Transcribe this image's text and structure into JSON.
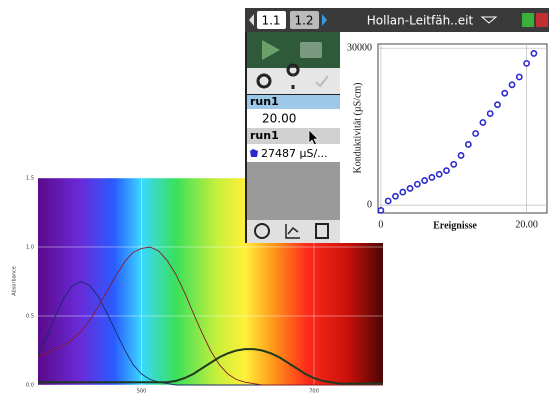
{
  "chart_data": [
    {
      "type": "line",
      "y_label": "Absorbance",
      "x": [
        380,
        390,
        400,
        410,
        420,
        430,
        440,
        450,
        460,
        470,
        480,
        490,
        500,
        510,
        520,
        530,
        540,
        550,
        560,
        570,
        580,
        590,
        600,
        610,
        620,
        630,
        640,
        650,
        660,
        670,
        680,
        690,
        700,
        710,
        720,
        730,
        740,
        750,
        760,
        770,
        780
      ],
      "series": [
        {
          "color": "#1a2a6a",
          "values": [
            0.22,
            0.35,
            0.5,
            0.63,
            0.72,
            0.75,
            0.72,
            0.64,
            0.52,
            0.39,
            0.26,
            0.15,
            0.08,
            0.04,
            0.02,
            0.01,
            0,
            0,
            0,
            0,
            0,
            0,
            0,
            0,
            0,
            0,
            0,
            0,
            0,
            0,
            0,
            0,
            0,
            0,
            0,
            0,
            0,
            0,
            0,
            0,
            0
          ]
        },
        {
          "color": "#8a1a2a",
          "values": [
            0.21,
            0.23,
            0.26,
            0.29,
            0.33,
            0.39,
            0.47,
            0.57,
            0.68,
            0.79,
            0.89,
            0.96,
            0.99,
            1.0,
            0.97,
            0.9,
            0.8,
            0.67,
            0.52,
            0.38,
            0.25,
            0.15,
            0.08,
            0.04,
            0.02,
            0.01,
            0,
            0,
            0,
            0,
            0,
            0,
            0,
            0,
            0,
            0,
            0,
            0,
            0,
            0,
            0
          ]
        },
        {
          "color": "#1f3a1f",
          "values": [
            0.02,
            0.02,
            0.02,
            0.02,
            0.02,
            0.02,
            0.02,
            0.02,
            0.02,
            0.02,
            0.02,
            0.02,
            0.02,
            0.02,
            0.02,
            0.02,
            0.03,
            0.05,
            0.08,
            0.12,
            0.16,
            0.2,
            0.23,
            0.25,
            0.26,
            0.26,
            0.25,
            0.23,
            0.2,
            0.16,
            0.12,
            0.08,
            0.05,
            0.03,
            0.02,
            0.01,
            0.01,
            0.01,
            0.01,
            0.01,
            0.01
          ]
        }
      ],
      "xlim": [
        380,
        780
      ],
      "xticks": [
        500,
        700
      ],
      "ylim": [
        0,
        1.5
      ],
      "yticks": [
        {
          "value": 0,
          "label": "0.0"
        },
        {
          "value": 0.5,
          "label": "0.5"
        },
        {
          "value": 1,
          "label": "1.0"
        },
        {
          "value": 1.5,
          "label": "1.5"
        }
      ],
      "grid": true
    },
    {
      "type": "scatter",
      "x_label": "Ereignisse",
      "y_label": "Konduktivität (µS/cm)",
      "x": [
        0,
        1,
        2,
        3,
        4,
        5,
        6,
        7,
        8,
        9,
        10,
        11,
        12,
        13,
        14,
        15,
        16,
        17,
        18,
        19,
        20,
        21
      ],
      "series": [
        {
          "color": "#2a2ad0",
          "values": [
            -1000,
            800,
            1700,
            2500,
            3200,
            4000,
            4700,
            5300,
            5900,
            6600,
            7800,
            9500,
            11600,
            13700,
            15800,
            17500,
            19200,
            21400,
            23000,
            24500,
            27100,
            29000
          ]
        }
      ],
      "xlim": [
        -0.4,
        22.8
      ],
      "xticks": [
        0,
        {
          "value": 20,
          "label": "20.00"
        }
      ],
      "ylim": [
        -1500,
        30800
      ],
      "yticks": [
        0,
        30000
      ],
      "grid": true
    }
  ],
  "ui": {
    "tab_1": "1.1",
    "tab_2": "1.2",
    "doc_title": "Hollan-Leitfäh..eit",
    "run_header": "run1",
    "run_value": "20.00",
    "run_select": "run1",
    "reading": "27487 µS/..."
  }
}
